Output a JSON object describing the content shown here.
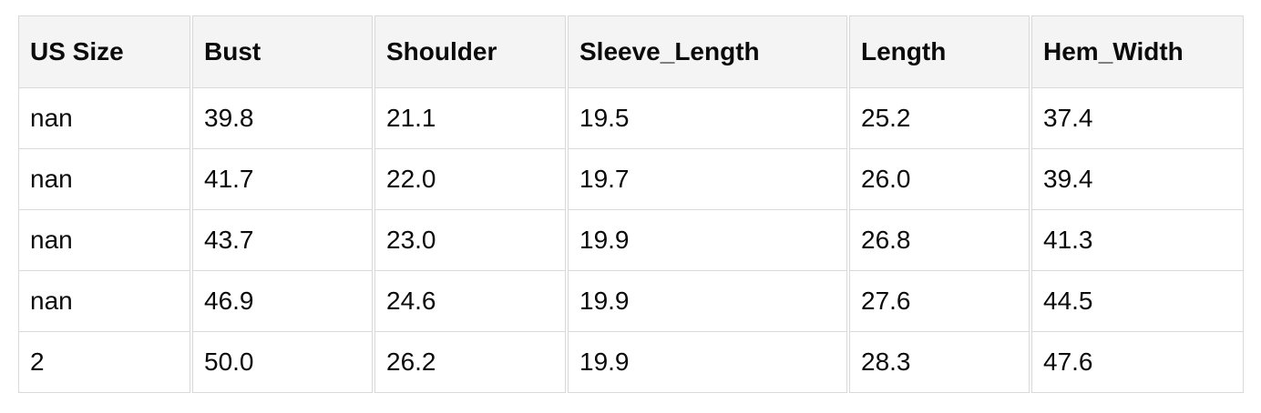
{
  "chart_data": {
    "type": "table",
    "columns": [
      "US Size",
      "Bust",
      "Shoulder",
      "Sleeve_Length",
      "Length",
      "Hem_Width"
    ],
    "rows": [
      [
        "nan",
        "39.8",
        "21.1",
        "19.5",
        "25.2",
        "37.4"
      ],
      [
        "nan",
        "41.7",
        "22.0",
        "19.7",
        "26.0",
        "39.4"
      ],
      [
        "nan",
        "43.7",
        "23.0",
        "19.9",
        "26.8",
        "41.3"
      ],
      [
        "nan",
        "46.9",
        "24.6",
        "19.9",
        "27.6",
        "44.5"
      ],
      [
        "2",
        "50.0",
        "26.2",
        "19.9",
        "28.3",
        "47.6"
      ]
    ]
  },
  "colors": {
    "header_bg": "#f4f4f4",
    "row_bg": "#ffffff",
    "border": "#d9d9d9",
    "text": "#0b0b0b",
    "page_bg": "#ffffff"
  }
}
